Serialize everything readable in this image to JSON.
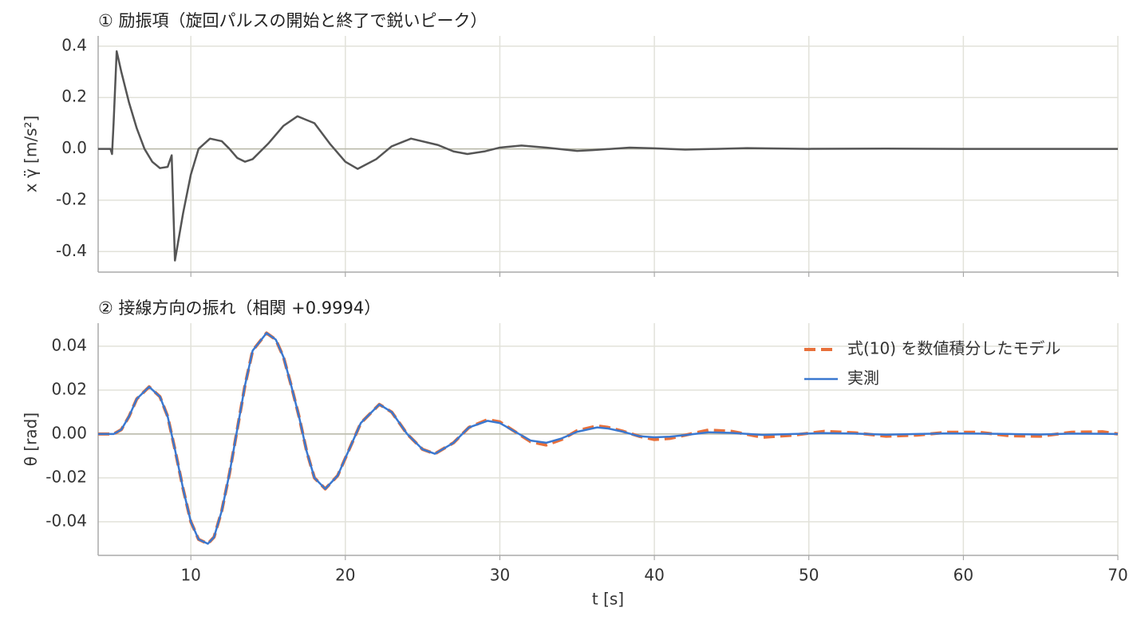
{
  "chart_data": [
    {
      "type": "line",
      "title": "① 励振項（旋回パルスの開始と終了で鋭いピーク）",
      "ylabel": "x γ̈ [m/s²]",
      "x": [
        4,
        4.8,
        4.9,
        5.0,
        5.2,
        5.5,
        6,
        6.5,
        7,
        7.5,
        8,
        8.5,
        8.76,
        8.97,
        9.5,
        10,
        10.5,
        11.24,
        12,
        12.5,
        13,
        13.5,
        14,
        15,
        16,
        16.9,
        18,
        19,
        20,
        20.8,
        22,
        23,
        24.25,
        26,
        27,
        27.9,
        29,
        30,
        31.4,
        33,
        35,
        36,
        38.4,
        40,
        42,
        44,
        46,
        50,
        55,
        60,
        65,
        70
      ],
      "values": [
        0,
        0,
        -0.02,
        0.1,
        0.38,
        0.3,
        0.18,
        0.08,
        0.0,
        -0.05,
        -0.075,
        -0.07,
        -0.025,
        -0.435,
        -0.25,
        -0.1,
        0.0,
        0.04,
        0.03,
        0.0,
        -0.035,
        -0.05,
        -0.04,
        0.02,
        0.09,
        0.127,
        0.1,
        0.02,
        -0.05,
        -0.078,
        -0.04,
        0.01,
        0.04,
        0.015,
        -0.01,
        -0.02,
        -0.01,
        0.005,
        0.013,
        0.005,
        -0.008,
        -0.005,
        0.005,
        0.002,
        -0.003,
        0,
        0.003,
        0,
        0.001,
        0,
        0,
        0
      ],
      "color": "#555555",
      "xlim": [
        4,
        70
      ],
      "xticks": [
        10,
        20,
        30,
        40,
        50,
        60,
        70
      ],
      "ylim": [
        -0.48,
        0.44
      ],
      "yticks": [
        0.4,
        0.2,
        {
          "value": 0,
          "label": "0.0"
        },
        -0.2,
        -0.4
      ],
      "grid": true,
      "zero_line": true
    },
    {
      "type": "line",
      "title": "② 接線方向の振れ（相関 +0.9994）",
      "ylabel": "θ [rad]",
      "xlabel": "t [s]",
      "x": [
        4,
        5,
        5.5,
        6,
        6.5,
        7.3,
        8,
        8.5,
        9,
        9.5,
        10,
        10.5,
        11.1,
        11.5,
        12,
        12.5,
        13,
        13.5,
        14,
        14.9,
        15.5,
        16,
        16.5,
        17,
        17.5,
        18,
        18.7,
        19.5,
        20,
        21,
        22.2,
        23,
        24,
        25,
        25.8,
        27,
        28,
        29.2,
        30,
        31,
        32,
        33,
        34,
        35,
        36.3,
        37,
        38,
        39,
        40,
        41,
        42,
        43.5,
        45,
        47,
        49,
        51,
        53,
        55,
        57,
        59,
        61,
        63,
        65,
        67,
        69,
        70
      ],
      "series": [
        {
          "name": "式(10) を数値積分したモデル",
          "color": "#e8703a",
          "dashed": true,
          "values": [
            0,
            0,
            0.002,
            0.008,
            0.016,
            0.0215,
            0.017,
            0.008,
            -0.008,
            -0.025,
            -0.04,
            -0.048,
            -0.05,
            -0.047,
            -0.035,
            -0.018,
            0.002,
            0.022,
            0.038,
            0.046,
            0.043,
            0.035,
            0.022,
            0.008,
            -0.008,
            -0.02,
            -0.025,
            -0.019,
            -0.011,
            0.005,
            0.0135,
            0.01,
            0.0,
            -0.007,
            -0.009,
            -0.004,
            0.003,
            0.0065,
            0.0055,
            0.001,
            -0.0035,
            -0.005,
            -0.0025,
            0.0015,
            0.0037,
            0.003,
            0.0012,
            -0.001,
            -0.0025,
            -0.002,
            -0.0005,
            0.0018,
            0.0012,
            -0.0015,
            -0.0005,
            0.0012,
            0.0005,
            -0.001,
            -0.0005,
            0.0008,
            0.0008,
            -0.0008,
            -0.001,
            0.0008,
            0.001,
            0
          ]
        },
        {
          "name": "実測",
          "color": "#3a78d0",
          "dashed": false,
          "values": [
            0,
            0,
            0.002,
            0.008,
            0.016,
            0.0215,
            0.017,
            0.008,
            -0.008,
            -0.025,
            -0.04,
            -0.048,
            -0.05,
            -0.047,
            -0.035,
            -0.018,
            0.002,
            0.022,
            0.038,
            0.046,
            0.043,
            0.035,
            0.022,
            0.008,
            -0.008,
            -0.02,
            -0.025,
            -0.019,
            -0.011,
            0.005,
            0.0135,
            0.01,
            0.0,
            -0.007,
            -0.009,
            -0.004,
            0.003,
            0.006,
            0.005,
            0.001,
            -0.003,
            -0.004,
            -0.002,
            0.001,
            0.003,
            0.0025,
            0.001,
            -0.001,
            -0.0015,
            -0.0012,
            -0.0005,
            0.0008,
            0.0005,
            -0.0004,
            0,
            0.0004,
            0.0002,
            -0.0003,
            0,
            0.0003,
            0.0002,
            0,
            -0.0002,
            0.0002,
            0.0001,
            0
          ]
        }
      ],
      "xlim": [
        4,
        70
      ],
      "xticks": [
        10,
        20,
        30,
        40,
        50,
        60,
        70
      ],
      "ylim": [
        -0.0553,
        0.0505
      ],
      "yticks": [
        0.04,
        0.02,
        {
          "value": 0,
          "label": "0.00"
        },
        -0.02,
        -0.04
      ],
      "grid": true,
      "zero_line": true,
      "legend": "upper right"
    }
  ]
}
